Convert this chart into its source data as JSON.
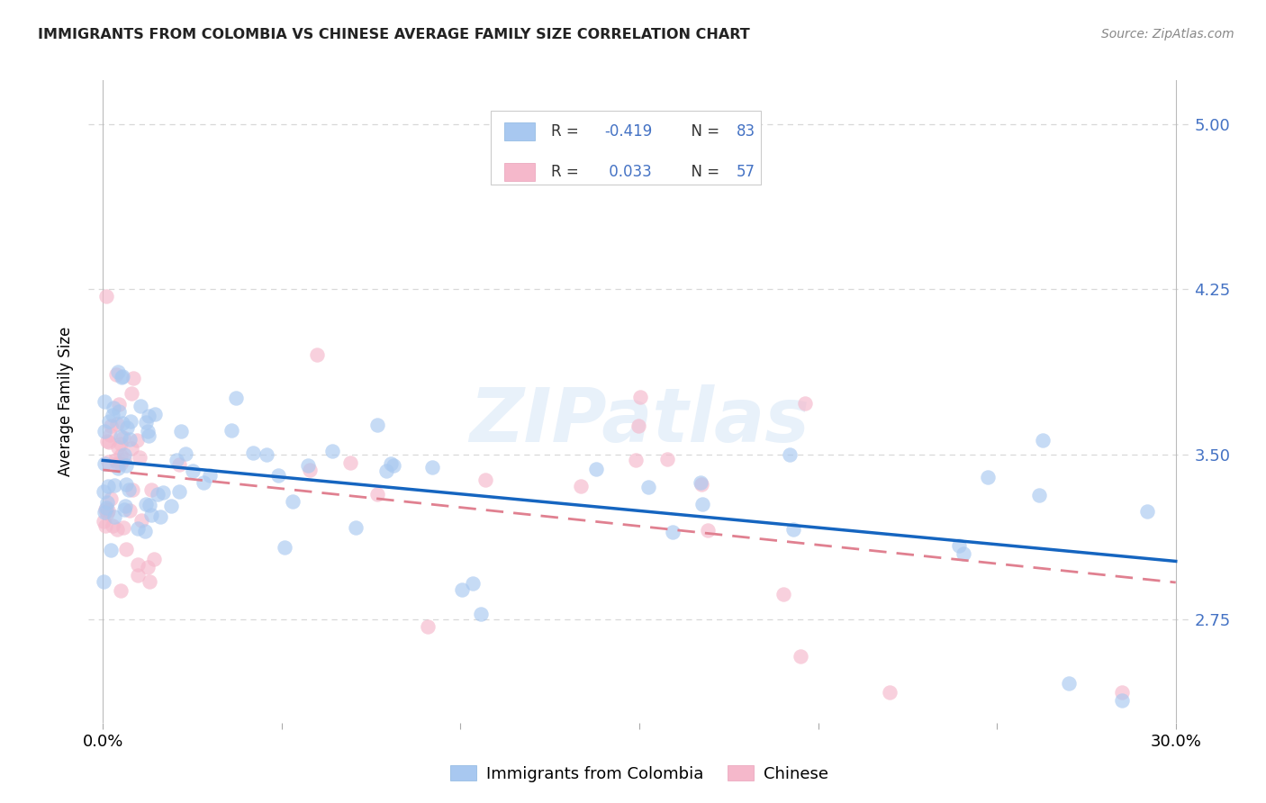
{
  "title": "IMMIGRANTS FROM COLOMBIA VS CHINESE AVERAGE FAMILY SIZE CORRELATION CHART",
  "source": "Source: ZipAtlas.com",
  "ylabel": "Average Family Size",
  "yticks": [
    2.75,
    3.5,
    4.25,
    5.0
  ],
  "xlim": [
    -0.004,
    0.304
  ],
  "ylim": [
    2.28,
    5.2
  ],
  "watermark": "ZIPatlas",
  "legend_blue_label": "Immigrants from Colombia",
  "legend_pink_label": "Chinese",
  "colombia_color": "#a8c8f0",
  "chinese_color": "#f5b8cb",
  "colombia_line_color": "#1565c0",
  "chinese_line_color": "#e08090",
  "grid_color": "#d8d8d8",
  "axis_tick_color": "#4472c4",
  "text_color": "#4472c4",
  "background_color": "#ffffff",
  "title_color": "#222222",
  "source_color": "#888888"
}
